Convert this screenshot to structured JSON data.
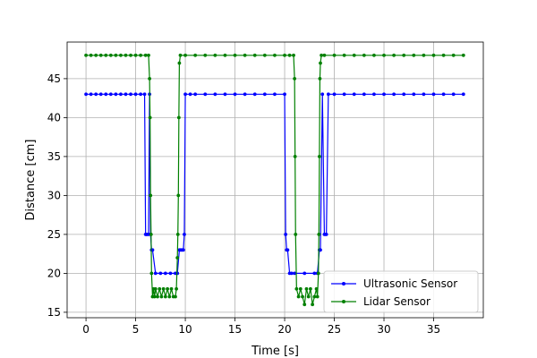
{
  "chart_data": {
    "type": "line",
    "xlabel": "Time [s]",
    "ylabel": "Distance [cm]",
    "xlim": [
      -1.9,
      40
    ],
    "ylim": [
      14.3,
      49.7
    ],
    "xticks": [
      0,
      5,
      10,
      15,
      20,
      25,
      30,
      35
    ],
    "yticks": [
      15,
      20,
      25,
      30,
      35,
      40,
      45
    ],
    "grid": true,
    "legend_position": "lower-right",
    "series": [
      {
        "name": "Ultrasonic Sensor",
        "color": "#0000ff",
        "marker": "circle",
        "x": [
          0,
          0.5,
          1,
          1.5,
          2,
          2.5,
          3,
          3.5,
          4,
          4.5,
          5,
          5.5,
          5.9,
          6.0,
          6.05,
          6.1,
          6.2,
          6.3,
          6.4,
          6.5,
          6.6,
          6.7,
          7,
          7.5,
          8,
          8.5,
          9.0,
          9.2,
          9.4,
          9.5,
          9.6,
          9.7,
          9.8,
          9.9,
          10.0,
          10.5,
          11,
          12,
          13,
          14,
          15,
          16,
          17,
          18,
          19,
          20.0,
          20.1,
          20.2,
          20.3,
          20.5,
          20.7,
          21,
          22,
          23.0,
          23.3,
          23.5,
          23.6,
          23.8,
          24.0,
          24.1,
          24.2,
          24.4,
          25,
          26,
          27,
          28,
          29,
          30,
          31,
          32,
          33,
          34,
          35,
          36,
          37,
          38
        ],
        "y": [
          43,
          43,
          43,
          43,
          43,
          43,
          43,
          43,
          43,
          43,
          43,
          43,
          43,
          25,
          25,
          25,
          25,
          25,
          43,
          25,
          23,
          23,
          20,
          20,
          20,
          20,
          20,
          20,
          23,
          23,
          23,
          23,
          23,
          25,
          43,
          43,
          43,
          43,
          43,
          43,
          43,
          43,
          43,
          43,
          43,
          43,
          25,
          23,
          23,
          20,
          20,
          20,
          20,
          20,
          20,
          23,
          23,
          43,
          25,
          25,
          25,
          43,
          43,
          43,
          43,
          43,
          43,
          43,
          43,
          43,
          43,
          43,
          43,
          43,
          43,
          43
        ]
      },
      {
        "name": "Lidar Sensor",
        "color": "#008000",
        "marker": "circle",
        "x": [
          0,
          0.5,
          1,
          1.5,
          2,
          2.5,
          3,
          3.5,
          4,
          4.5,
          5,
          5.5,
          6.0,
          6.3,
          6.4,
          6.45,
          6.5,
          6.55,
          6.6,
          6.7,
          6.8,
          6.9,
          7,
          7.2,
          7.4,
          7.6,
          7.8,
          8,
          8.2,
          8.4,
          8.6,
          8.8,
          9.0,
          9.1,
          9.2,
          9.25,
          9.3,
          9.35,
          9.4,
          9.5,
          10,
          11,
          12,
          13,
          14,
          15,
          16,
          17,
          18,
          19,
          20,
          20.5,
          20.9,
          21.0,
          21.05,
          21.1,
          21.2,
          21.4,
          21.6,
          21.8,
          22,
          22.2,
          22.4,
          22.6,
          22.8,
          23,
          23.2,
          23.3,
          23.4,
          23.45,
          23.5,
          23.55,
          23.6,
          23.7,
          24,
          25,
          26,
          27,
          28,
          29,
          30,
          31,
          32,
          33,
          34,
          35,
          36,
          37,
          38
        ],
        "y": [
          48,
          48,
          48,
          48,
          48,
          48,
          48,
          48,
          48,
          48,
          48,
          48,
          48,
          48,
          45,
          40,
          30,
          25,
          20,
          17,
          18,
          17,
          18,
          17,
          18,
          17,
          18,
          17,
          18,
          17,
          18,
          17,
          17,
          18,
          22,
          25,
          30,
          40,
          47,
          48,
          48,
          48,
          48,
          48,
          48,
          48,
          48,
          48,
          48,
          48,
          48,
          48,
          48,
          45,
          35,
          25,
          18,
          17,
          18,
          17,
          16,
          18,
          17,
          18,
          16,
          17,
          18,
          17,
          20,
          25,
          35,
          45,
          47,
          48,
          48,
          48,
          48,
          48,
          48,
          48,
          48,
          48,
          48,
          48,
          48,
          48,
          48,
          48,
          48
        ]
      }
    ]
  }
}
